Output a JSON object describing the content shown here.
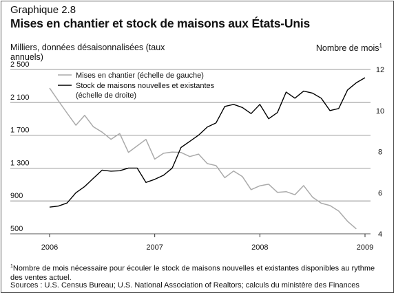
{
  "header": {
    "label": "Graphique 2.8",
    "title": "Mises en chantier et stock de maisons aux États-Unis"
  },
  "axes": {
    "left_label": "Milliers, données désaisonnalisées (taux annuels)",
    "right_label": "Nombre de mois",
    "right_label_note": "1"
  },
  "footnote": {
    "marker": "1",
    "text": "Nombre de mois nécessaire pour écouler le stock de maisons nouvelles et existantes disponibles au rythme des ventes actuel."
  },
  "sources": "Sources : U.S. Census Bureau; U.S. National Association of Realtors; calculs du ministère des Finances",
  "colors": {
    "housing_starts": "#aaaaaa",
    "inventory": "#000000",
    "grid": "#777777"
  },
  "chart_data": {
    "type": "line",
    "x_ticks": [
      "2006",
      "2007",
      "2008",
      "2009"
    ],
    "x_tick_values": [
      2006,
      2007,
      2008,
      2009
    ],
    "xlim": [
      2006,
      2009
    ],
    "ylim_left": [
      500,
      2500
    ],
    "ylim_right": [
      4,
      12
    ],
    "y_ticks_left": [
      "2 500",
      "2 100",
      "1 700",
      "1 300",
      "900",
      "500"
    ],
    "y_tick_values_left": [
      2500,
      2100,
      1700,
      1300,
      900,
      500
    ],
    "y_ticks_right": [
      "12",
      "10",
      "8",
      "6",
      "4"
    ],
    "y_tick_values_right": [
      12,
      10,
      8,
      6,
      4
    ],
    "grid": "horizontal",
    "legend_placement": "top-left",
    "series": [
      {
        "name": "Mises en chantier (échelle de gauche)",
        "axis": "left",
        "x_start": 2006,
        "x_step_months": 1,
        "values": [
          2273,
          2119,
          1969,
          1821,
          1942,
          1802,
          1737,
          1650,
          1720,
          1491,
          1570,
          1649,
          1409,
          1480,
          1495,
          1490,
          1440,
          1470,
          1354,
          1330,
          1183,
          1264,
          1197,
          1037,
          1084,
          1103,
          1005,
          1013,
          975,
          1087,
          947,
          872,
          844,
          777,
          652,
          560
        ]
      },
      {
        "name": "Stock de maisons nouvelles et existantes (échelle de droite)",
        "axis": "right",
        "x_start": 2006,
        "x_step_months": 1,
        "values": [
          5.3,
          5.35,
          5.5,
          6.0,
          6.3,
          6.7,
          7.1,
          7.05,
          7.07,
          7.2,
          7.2,
          6.5,
          6.65,
          6.85,
          7.2,
          8.2,
          8.5,
          8.8,
          9.2,
          9.4,
          10.2,
          10.3,
          10.15,
          9.85,
          10.3,
          9.6,
          9.9,
          10.9,
          10.6,
          10.95,
          10.85,
          10.6,
          10.0,
          10.1,
          11.0,
          11.35,
          11.6
        ]
      }
    ]
  }
}
